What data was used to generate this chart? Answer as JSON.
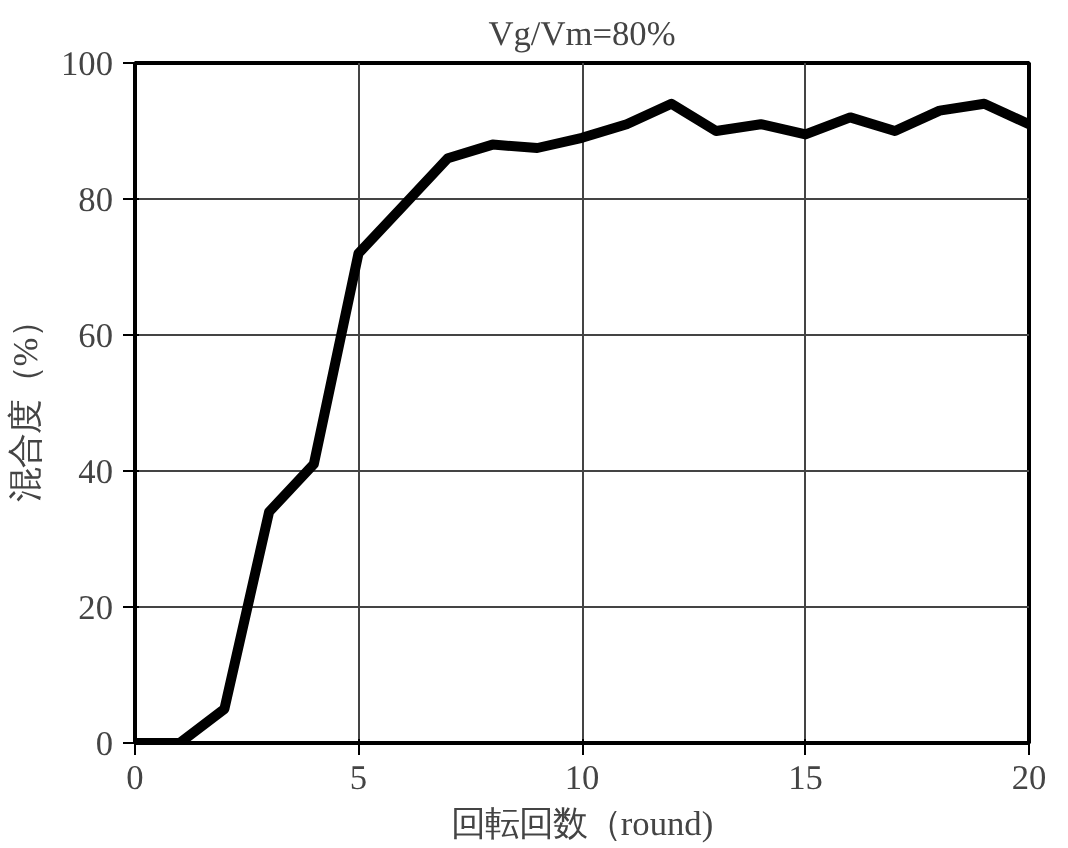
{
  "chart_data": {
    "type": "line",
    "title": "Vg/Vm=80%",
    "xlabel": "回転回数（round)",
    "ylabel": "混合度（%）",
    "x": [
      0,
      1,
      2,
      3,
      4,
      5,
      6,
      7,
      8,
      9,
      10,
      11,
      12,
      13,
      14,
      15,
      16,
      17,
      18,
      19,
      20
    ],
    "series": [
      {
        "color": "#000000",
        "values": [
          0,
          0,
          5,
          34,
          41,
          72,
          79,
          86,
          88,
          87.5,
          89,
          91,
          94,
          90,
          91,
          89.5,
          92,
          90,
          93,
          94,
          91
        ]
      }
    ],
    "xlim": [
      0,
      20
    ],
    "ylim": [
      0,
      100
    ],
    "xticks": [
      0,
      5,
      10,
      15,
      20
    ],
    "yticks": [
      0,
      20,
      40,
      60,
      80,
      100
    ],
    "grid": true,
    "marker": "none",
    "line_style": "solid"
  }
}
